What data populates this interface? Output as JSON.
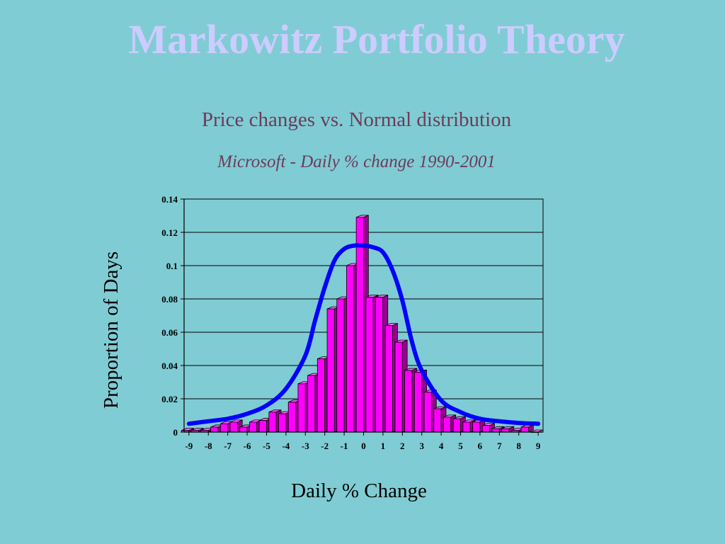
{
  "slide": {
    "title": "Markowitz Portfolio Theory"
  },
  "colors": {
    "background": "#80ccd4",
    "title": "#ccccff",
    "chart_heading": "#6b3c5a",
    "bar_face": "#ff00ff",
    "bar_side": "#99008f",
    "bar_top": "#ff66ff",
    "curve": "#0000ff",
    "plot_area": "#80ccd4"
  },
  "chart_data": {
    "type": "bar",
    "title": "Price changes vs. Normal distribution",
    "subtitle": "Microsoft - Daily % change 1990-2001",
    "xlabel": "Daily % Change",
    "ylabel": "Proportion of Days",
    "ylim": [
      0,
      0.14
    ],
    "yticks": [
      "0",
      "0.02",
      "0.04",
      "0.06",
      "0.08",
      "0.1",
      "0.12",
      "0.14"
    ],
    "ytick_values": [
      0,
      0.02,
      0.04,
      0.06,
      0.08,
      0.1,
      0.12,
      0.14
    ],
    "xticks": [
      "-9",
      "-8",
      "-7",
      "-6",
      "-5",
      "-4",
      "-3",
      "-2",
      "-1",
      "0",
      "1",
      "2",
      "3",
      "4",
      "5",
      "6",
      "7",
      "8",
      "9"
    ],
    "xlim": [
      -9.25,
      9.25
    ],
    "grid": true,
    "bar_width": 0.5,
    "series": [
      {
        "type": "bar",
        "x": [
          -9,
          -8.5,
          -8,
          -7.5,
          -7,
          -6.5,
          -6,
          -5.5,
          -5,
          -4.5,
          -4,
          -3.5,
          -3,
          -2.5,
          -2,
          -1.5,
          -1,
          -0.5,
          0,
          0.5,
          1,
          1.5,
          2,
          2.5,
          3,
          3.5,
          4,
          4.5,
          5,
          5.5,
          6,
          6.5,
          7,
          7.5,
          8,
          8.5,
          9
        ],
        "values": [
          0.001,
          0.001,
          0.001,
          0.003,
          0.005,
          0.006,
          0.003,
          0.006,
          0.007,
          0.012,
          0.011,
          0.018,
          0.029,
          0.034,
          0.044,
          0.074,
          0.08,
          0.1,
          0.129,
          0.081,
          0.081,
          0.064,
          0.054,
          0.037,
          0.036,
          0.024,
          0.014,
          0.009,
          0.008,
          0.006,
          0.006,
          0.004,
          0.002,
          0.002,
          0.001,
          0.003,
          0.0
        ]
      },
      {
        "type": "line",
        "x": [
          -9,
          -8,
          -7,
          -6,
          -5,
          -4,
          -3,
          -2.5,
          -2,
          -1.5,
          -1,
          -0.5,
          0,
          0.5,
          1,
          1.5,
          2,
          2.5,
          3,
          4,
          5,
          6,
          7,
          8,
          9
        ],
        "values": [
          0.005,
          0.0065,
          0.008,
          0.011,
          0.016,
          0.026,
          0.046,
          0.067,
          0.087,
          0.103,
          0.11,
          0.112,
          0.112,
          0.111,
          0.108,
          0.097,
          0.079,
          0.054,
          0.037,
          0.019,
          0.012,
          0.008,
          0.0065,
          0.0055,
          0.005
        ]
      }
    ]
  }
}
